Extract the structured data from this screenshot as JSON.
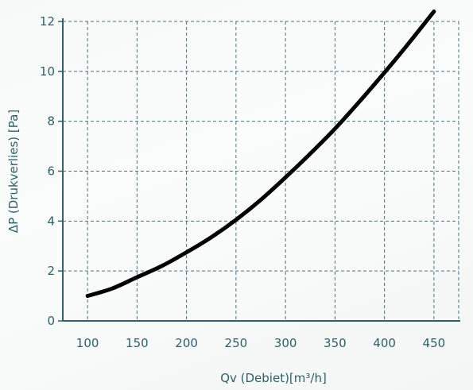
{
  "chart_data": {
    "type": "line",
    "xlabel": "Qv (Debiet)[m³/h]",
    "ylabel": "ΔP (Drukverlies) [Pa]",
    "xlim": [
      75,
      475
    ],
    "ylim": [
      0,
      12
    ],
    "x_ticks": [
      100,
      150,
      200,
      250,
      300,
      350,
      400,
      450
    ],
    "y_ticks": [
      0,
      2,
      4,
      6,
      8,
      10,
      12
    ],
    "x_tick_labels": [
      "100",
      "150",
      "200",
      "250",
      "300",
      "350",
      "400",
      "450"
    ],
    "y_tick_labels": [
      "0",
      "2",
      "4",
      "6",
      "8",
      "10",
      "12"
    ],
    "grid": true,
    "series": [
      {
        "x": [
          100,
          125,
          150,
          175,
          200,
          225,
          250,
          275,
          300,
          325,
          350,
          375,
          400,
          425,
          450
        ],
        "y": [
          1.0,
          1.3,
          1.75,
          2.2,
          2.75,
          3.35,
          4.05,
          4.85,
          5.75,
          6.7,
          7.7,
          8.8,
          9.95,
          11.15,
          12.4
        ]
      }
    ],
    "colors": {
      "line": "#000000",
      "axis": "#2e5f6b",
      "grid": "#4b7380",
      "text": "#2e5f6b"
    }
  }
}
